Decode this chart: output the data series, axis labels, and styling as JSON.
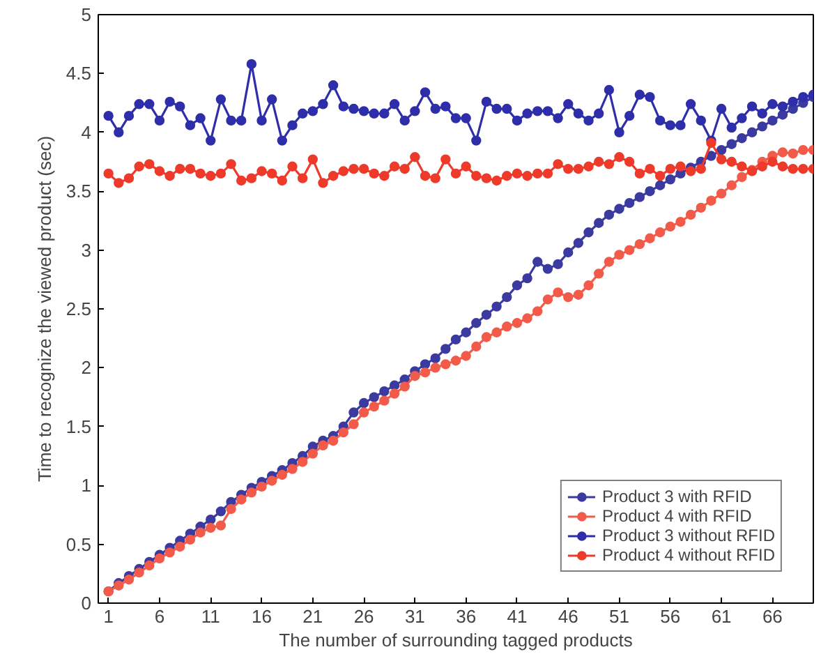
{
  "chart_data": {
    "type": "line",
    "xlabel": "The number of surrounding tagged products",
    "ylabel": "Time to recognize the viewed product (sec)",
    "x": [
      1,
      2,
      3,
      4,
      5,
      6,
      7,
      8,
      9,
      10,
      11,
      12,
      13,
      14,
      15,
      16,
      17,
      18,
      19,
      20,
      21,
      22,
      23,
      24,
      25,
      26,
      27,
      28,
      29,
      30,
      31,
      32,
      33,
      34,
      35,
      36,
      37,
      38,
      39,
      40,
      41,
      42,
      43,
      44,
      45,
      46,
      47,
      48,
      49,
      50,
      51,
      52,
      53,
      54,
      55,
      56,
      57,
      58,
      59,
      60,
      61,
      62,
      63,
      64,
      65,
      66,
      67,
      68,
      69,
      70
    ],
    "xlim": [
      0,
      70
    ],
    "xticks": [
      1,
      6,
      11,
      16,
      21,
      26,
      31,
      36,
      41,
      46,
      51,
      56,
      61,
      66
    ],
    "ylim": [
      0,
      5
    ],
    "yticks": [
      0,
      0.5,
      1,
      1.5,
      2,
      2.5,
      3,
      3.5,
      4,
      4.5,
      5
    ],
    "grid": false,
    "legend": "bottom right",
    "marker": "circle",
    "line_style": "solid",
    "series": [
      {
        "name": "Product 3 with RFID",
        "color": "#3a3aa0",
        "values": [
          0.1,
          0.17,
          0.23,
          0.29,
          0.35,
          0.41,
          0.47,
          0.53,
          0.59,
          0.65,
          0.71,
          0.78,
          0.86,
          0.92,
          0.98,
          1.03,
          1.08,
          1.13,
          1.19,
          1.25,
          1.33,
          1.38,
          1.42,
          1.5,
          1.62,
          1.7,
          1.75,
          1.8,
          1.85,
          1.9,
          1.97,
          2.03,
          2.08,
          2.16,
          2.24,
          2.3,
          2.38,
          2.45,
          2.52,
          2.6,
          2.7,
          2.76,
          2.9,
          2.84,
          2.88,
          2.98,
          3.06,
          3.15,
          3.23,
          3.3,
          3.35,
          3.4,
          3.45,
          3.5,
          3.55,
          3.6,
          3.65,
          3.7,
          3.75,
          3.8,
          3.85,
          3.9,
          3.95,
          4.0,
          4.05,
          4.1,
          4.15,
          4.2,
          4.25,
          4.3
        ]
      },
      {
        "name": "Product 4 with RFID",
        "color": "#f25a4a",
        "values": [
          0.1,
          0.15,
          0.2,
          0.26,
          0.32,
          0.38,
          0.43,
          0.48,
          0.54,
          0.6,
          0.64,
          0.66,
          0.8,
          0.88,
          0.94,
          0.99,
          1.04,
          1.09,
          1.14,
          1.2,
          1.27,
          1.34,
          1.38,
          1.45,
          1.52,
          1.62,
          1.67,
          1.72,
          1.78,
          1.84,
          1.93,
          1.96,
          2.0,
          2.03,
          2.06,
          2.1,
          2.18,
          2.26,
          2.3,
          2.35,
          2.38,
          2.42,
          2.48,
          2.58,
          2.64,
          2.6,
          2.62,
          2.7,
          2.8,
          2.9,
          2.96,
          3.0,
          3.05,
          3.1,
          3.15,
          3.2,
          3.24,
          3.3,
          3.36,
          3.42,
          3.48,
          3.55,
          3.62,
          3.68,
          3.75,
          3.8,
          3.83,
          3.82,
          3.85,
          3.85
        ]
      },
      {
        "name": "Product 3 without RFID",
        "color": "#2e2eaa",
        "values": [
          4.14,
          4.0,
          4.14,
          4.24,
          4.24,
          4.1,
          4.26,
          4.22,
          4.06,
          4.12,
          3.93,
          4.28,
          4.1,
          4.1,
          4.58,
          4.1,
          4.28,
          3.93,
          4.06,
          4.16,
          4.18,
          4.24,
          4.4,
          4.22,
          4.2,
          4.18,
          4.16,
          4.16,
          4.24,
          4.1,
          4.18,
          4.34,
          4.2,
          4.22,
          4.12,
          4.12,
          3.93,
          4.26,
          4.2,
          4.2,
          4.1,
          4.16,
          4.18,
          4.18,
          4.12,
          4.24,
          4.16,
          4.1,
          4.16,
          4.36,
          4.0,
          4.14,
          4.32,
          4.3,
          4.1,
          4.06,
          4.06,
          4.24,
          4.1,
          3.93,
          4.2,
          4.04,
          4.12,
          4.22,
          4.16,
          4.24,
          4.22,
          4.26,
          4.3,
          4.32
        ]
      },
      {
        "name": "Product 4 without RFID",
        "color": "#ee3a2a",
        "values": [
          3.65,
          3.57,
          3.61,
          3.71,
          3.73,
          3.67,
          3.63,
          3.69,
          3.69,
          3.65,
          3.63,
          3.65,
          3.73,
          3.59,
          3.61,
          3.67,
          3.65,
          3.59,
          3.71,
          3.61,
          3.77,
          3.57,
          3.63,
          3.67,
          3.69,
          3.69,
          3.65,
          3.63,
          3.71,
          3.69,
          3.79,
          3.63,
          3.61,
          3.77,
          3.65,
          3.71,
          3.63,
          3.61,
          3.59,
          3.63,
          3.65,
          3.63,
          3.65,
          3.65,
          3.73,
          3.69,
          3.69,
          3.71,
          3.75,
          3.73,
          3.79,
          3.75,
          3.65,
          3.69,
          3.63,
          3.69,
          3.71,
          3.67,
          3.69,
          3.91,
          3.77,
          3.75,
          3.71,
          3.67,
          3.71,
          3.75,
          3.71,
          3.69,
          3.69,
          3.69
        ]
      }
    ]
  }
}
